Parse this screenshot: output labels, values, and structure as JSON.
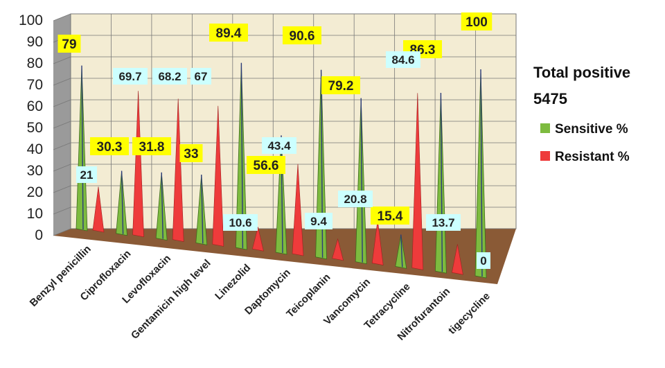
{
  "chart_data": {
    "type": "bar",
    "style": "3d-cone",
    "categories": [
      "Benzyl penicillin",
      "Ciprofloxacin",
      "Levofloxacin",
      "Gentamicin high level",
      "Linezolid",
      "Daptomycin",
      "Teicoplanin",
      "Vancomycin",
      "Tetracycline",
      "Nitrofurantoin",
      "tigecycline"
    ],
    "series": [
      {
        "name": "Sensitive %",
        "color": "#7dbb3f",
        "label_bg": "#ffff00",
        "values": [
          79,
          30.3,
          31.8,
          33,
          89.4,
          56.6,
          90.6,
          79.2,
          15.4,
          86.3,
          100
        ]
      },
      {
        "name": "Resistant %",
        "color": "#ee3b3b",
        "label_bg": "#ccffff",
        "values": [
          21,
          69.7,
          68.2,
          67,
          10.6,
          43.4,
          9.4,
          20.8,
          84.6,
          13.7,
          0
        ]
      }
    ],
    "labels": {
      "sensitive": [
        "79",
        "30.3",
        "31.8",
        "33",
        "89.4",
        "56.6",
        "90.6",
        "79.2",
        "15.4",
        "86.3",
        "100"
      ],
      "resistant": [
        "21",
        "69.7",
        "68.2",
        "67",
        "10.6",
        "43.4",
        "9.4",
        "20.8",
        "84.6",
        "13.7",
        "0"
      ]
    },
    "legend_title": [
      "Total positive",
      "5475"
    ],
    "legend_position": "right",
    "ylim": [
      0,
      100
    ],
    "yticks": [
      "0",
      "10",
      "20",
      "30",
      "40",
      "50",
      "60",
      "70",
      "80",
      "90",
      "100"
    ],
    "grid": true,
    "xlabel": "",
    "ylabel": "",
    "title": ""
  },
  "colors": {
    "wall": "#f3ecd3",
    "floor": "#8a5a36",
    "side_wall": "#9a9a9a",
    "grid": "#777777"
  }
}
